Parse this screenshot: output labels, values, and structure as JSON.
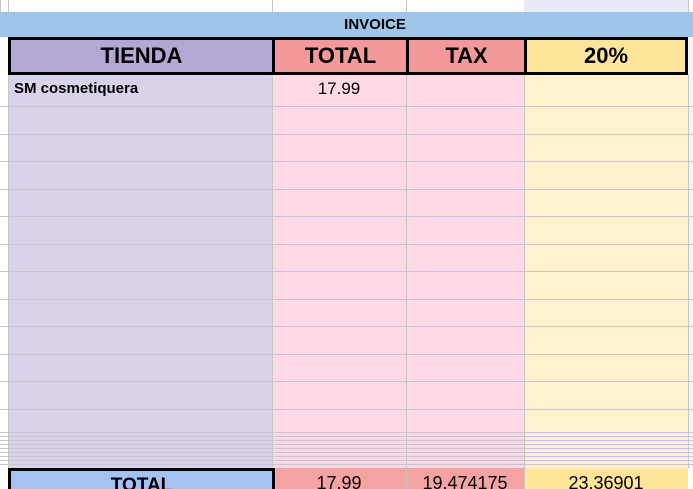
{
  "banner": {
    "title": "INVOICE"
  },
  "table": {
    "headers": [
      "TIENDA",
      "TOTAL",
      "TAX",
      "20%"
    ],
    "rows": [
      [
        "SM cosmetiquera",
        17.99
      ]
    ],
    "totals": {
      "label": "TOTAL",
      "values": [
        17.99,
        19.474175,
        23.36901
      ]
    }
  }
}
